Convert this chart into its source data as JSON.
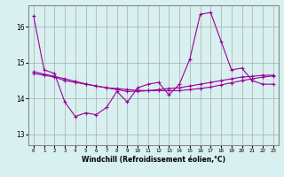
{
  "x": [
    0,
    1,
    2,
    3,
    4,
    5,
    6,
    7,
    8,
    9,
    10,
    11,
    12,
    13,
    14,
    15,
    16,
    17,
    18,
    19,
    20,
    21,
    22,
    23
  ],
  "line1": [
    16.3,
    14.8,
    14.7,
    13.9,
    13.5,
    13.6,
    13.55,
    13.75,
    14.2,
    13.9,
    14.3,
    14.4,
    14.45,
    14.1,
    14.4,
    15.1,
    16.35,
    16.4,
    15.6,
    14.8,
    14.85,
    14.5,
    14.4,
    14.4
  ],
  "line2": [
    14.7,
    14.65,
    14.6,
    14.5,
    14.45,
    14.4,
    14.35,
    14.3,
    14.25,
    14.2,
    14.2,
    14.22,
    14.25,
    14.28,
    14.3,
    14.35,
    14.4,
    14.45,
    14.5,
    14.55,
    14.6,
    14.62,
    14.65,
    14.65
  ],
  "line3": [
    14.75,
    14.68,
    14.62,
    14.55,
    14.48,
    14.41,
    14.35,
    14.3,
    14.28,
    14.25,
    14.23,
    14.22,
    14.22,
    14.22,
    14.22,
    14.25,
    14.28,
    14.32,
    14.38,
    14.44,
    14.5,
    14.55,
    14.6,
    14.63
  ],
  "line_color": "#990099",
  "bg_color": "#d8f0f0",
  "grid_color": "#aaaaaa",
  "ylabel_ticks": [
    13,
    14,
    15,
    16
  ],
  "xtick_labels": [
    "0",
    "1",
    "2",
    "3",
    "4",
    "5",
    "6",
    "7",
    "8",
    "9",
    "10",
    "11",
    "12",
    "13",
    "14",
    "15",
    "16",
    "17",
    "18",
    "19",
    "20",
    "21",
    "22",
    "23"
  ],
  "xlabel": "Windchill (Refroidissement éolien,°C)",
  "ylim": [
    12.7,
    16.6
  ],
  "xlim": [
    -0.5,
    23.5
  ]
}
